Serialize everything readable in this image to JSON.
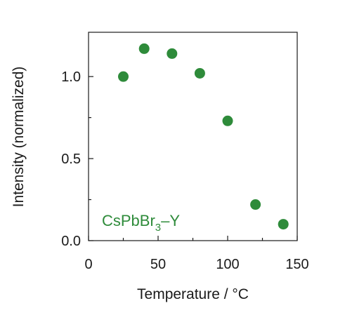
{
  "chart_data": {
    "type": "scatter",
    "title": "",
    "xlabel": "Temperature / °C",
    "ylabel": "Intensity (normalized)",
    "xlim": [
      0,
      150
    ],
    "ylim": [
      0,
      1.27
    ],
    "xticks": [
      0,
      50,
      100,
      150
    ],
    "xtick_labels": [
      "0",
      "50",
      "100",
      "150"
    ],
    "yticks": [
      0,
      0.5,
      1.0
    ],
    "ytick_labels": [
      "0.0",
      "0.5",
      "1.0"
    ],
    "grid": false,
    "series": [
      {
        "name": "CsPbBr3–Y",
        "color": "#2e8b3a",
        "x": [
          25,
          40,
          60,
          80,
          100,
          120,
          140
        ],
        "y": [
          1.0,
          1.17,
          1.14,
          1.02,
          0.73,
          0.22,
          0.1
        ]
      }
    ],
    "annotation": {
      "base": "CsPbBr",
      "subscript": "3",
      "suffix": "–Y",
      "color": "#2e8b3a"
    }
  }
}
